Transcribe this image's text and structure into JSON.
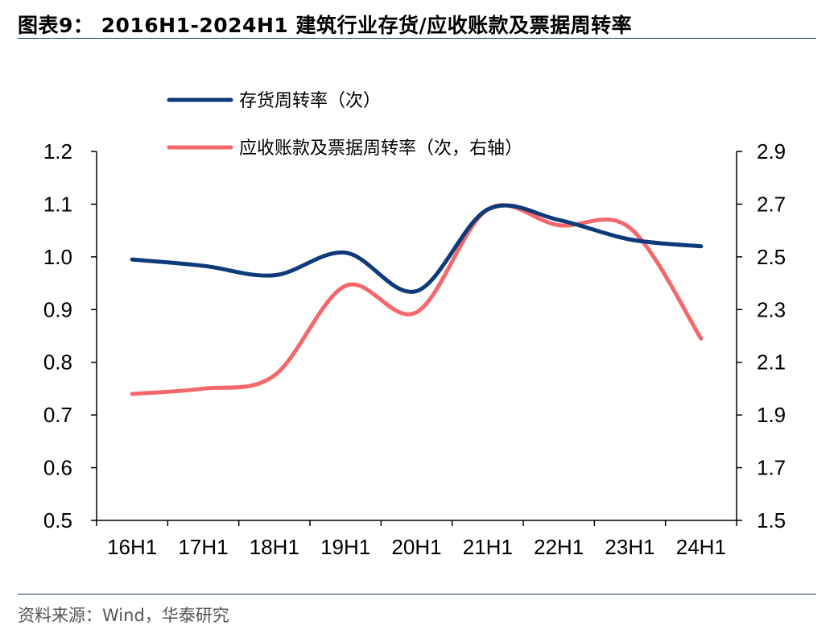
{
  "title": "图表9： 2016H1-2024H1 建筑行业存货/应收账款及票据周转率",
  "source": "资料来源：Wind，华泰研究",
  "chart_data": {
    "type": "line",
    "categories": [
      "16H1",
      "17H1",
      "18H1",
      "19H1",
      "20H1",
      "21H1",
      "22H1",
      "23H1",
      "24H1"
    ],
    "series": [
      {
        "name": "存货周转率（次）",
        "axis": "left",
        "color": "#0d3a78",
        "values": [
          0.995,
          0.983,
          0.965,
          1.008,
          0.935,
          1.09,
          1.07,
          1.033,
          1.02
        ]
      },
      {
        "name": "应收账款及票据周转率（次，右轴）",
        "axis": "right",
        "color": "#f4686b",
        "values": [
          1.98,
          2.0,
          2.05,
          2.39,
          2.29,
          2.68,
          2.62,
          2.61,
          2.19
        ]
      }
    ],
    "y_left": {
      "lim": [
        0.5,
        1.2
      ],
      "ticks": [
        "1.2",
        "1.1",
        "1.0",
        "0.9",
        "0.8",
        "0.7",
        "0.6",
        "0.5"
      ]
    },
    "y_right": {
      "lim": [
        1.5,
        2.9
      ],
      "ticks": [
        "2.9",
        "2.7",
        "2.5",
        "2.3",
        "2.1",
        "1.9",
        "1.7",
        "1.5"
      ]
    },
    "grid": false,
    "legend_position": "top-left"
  }
}
